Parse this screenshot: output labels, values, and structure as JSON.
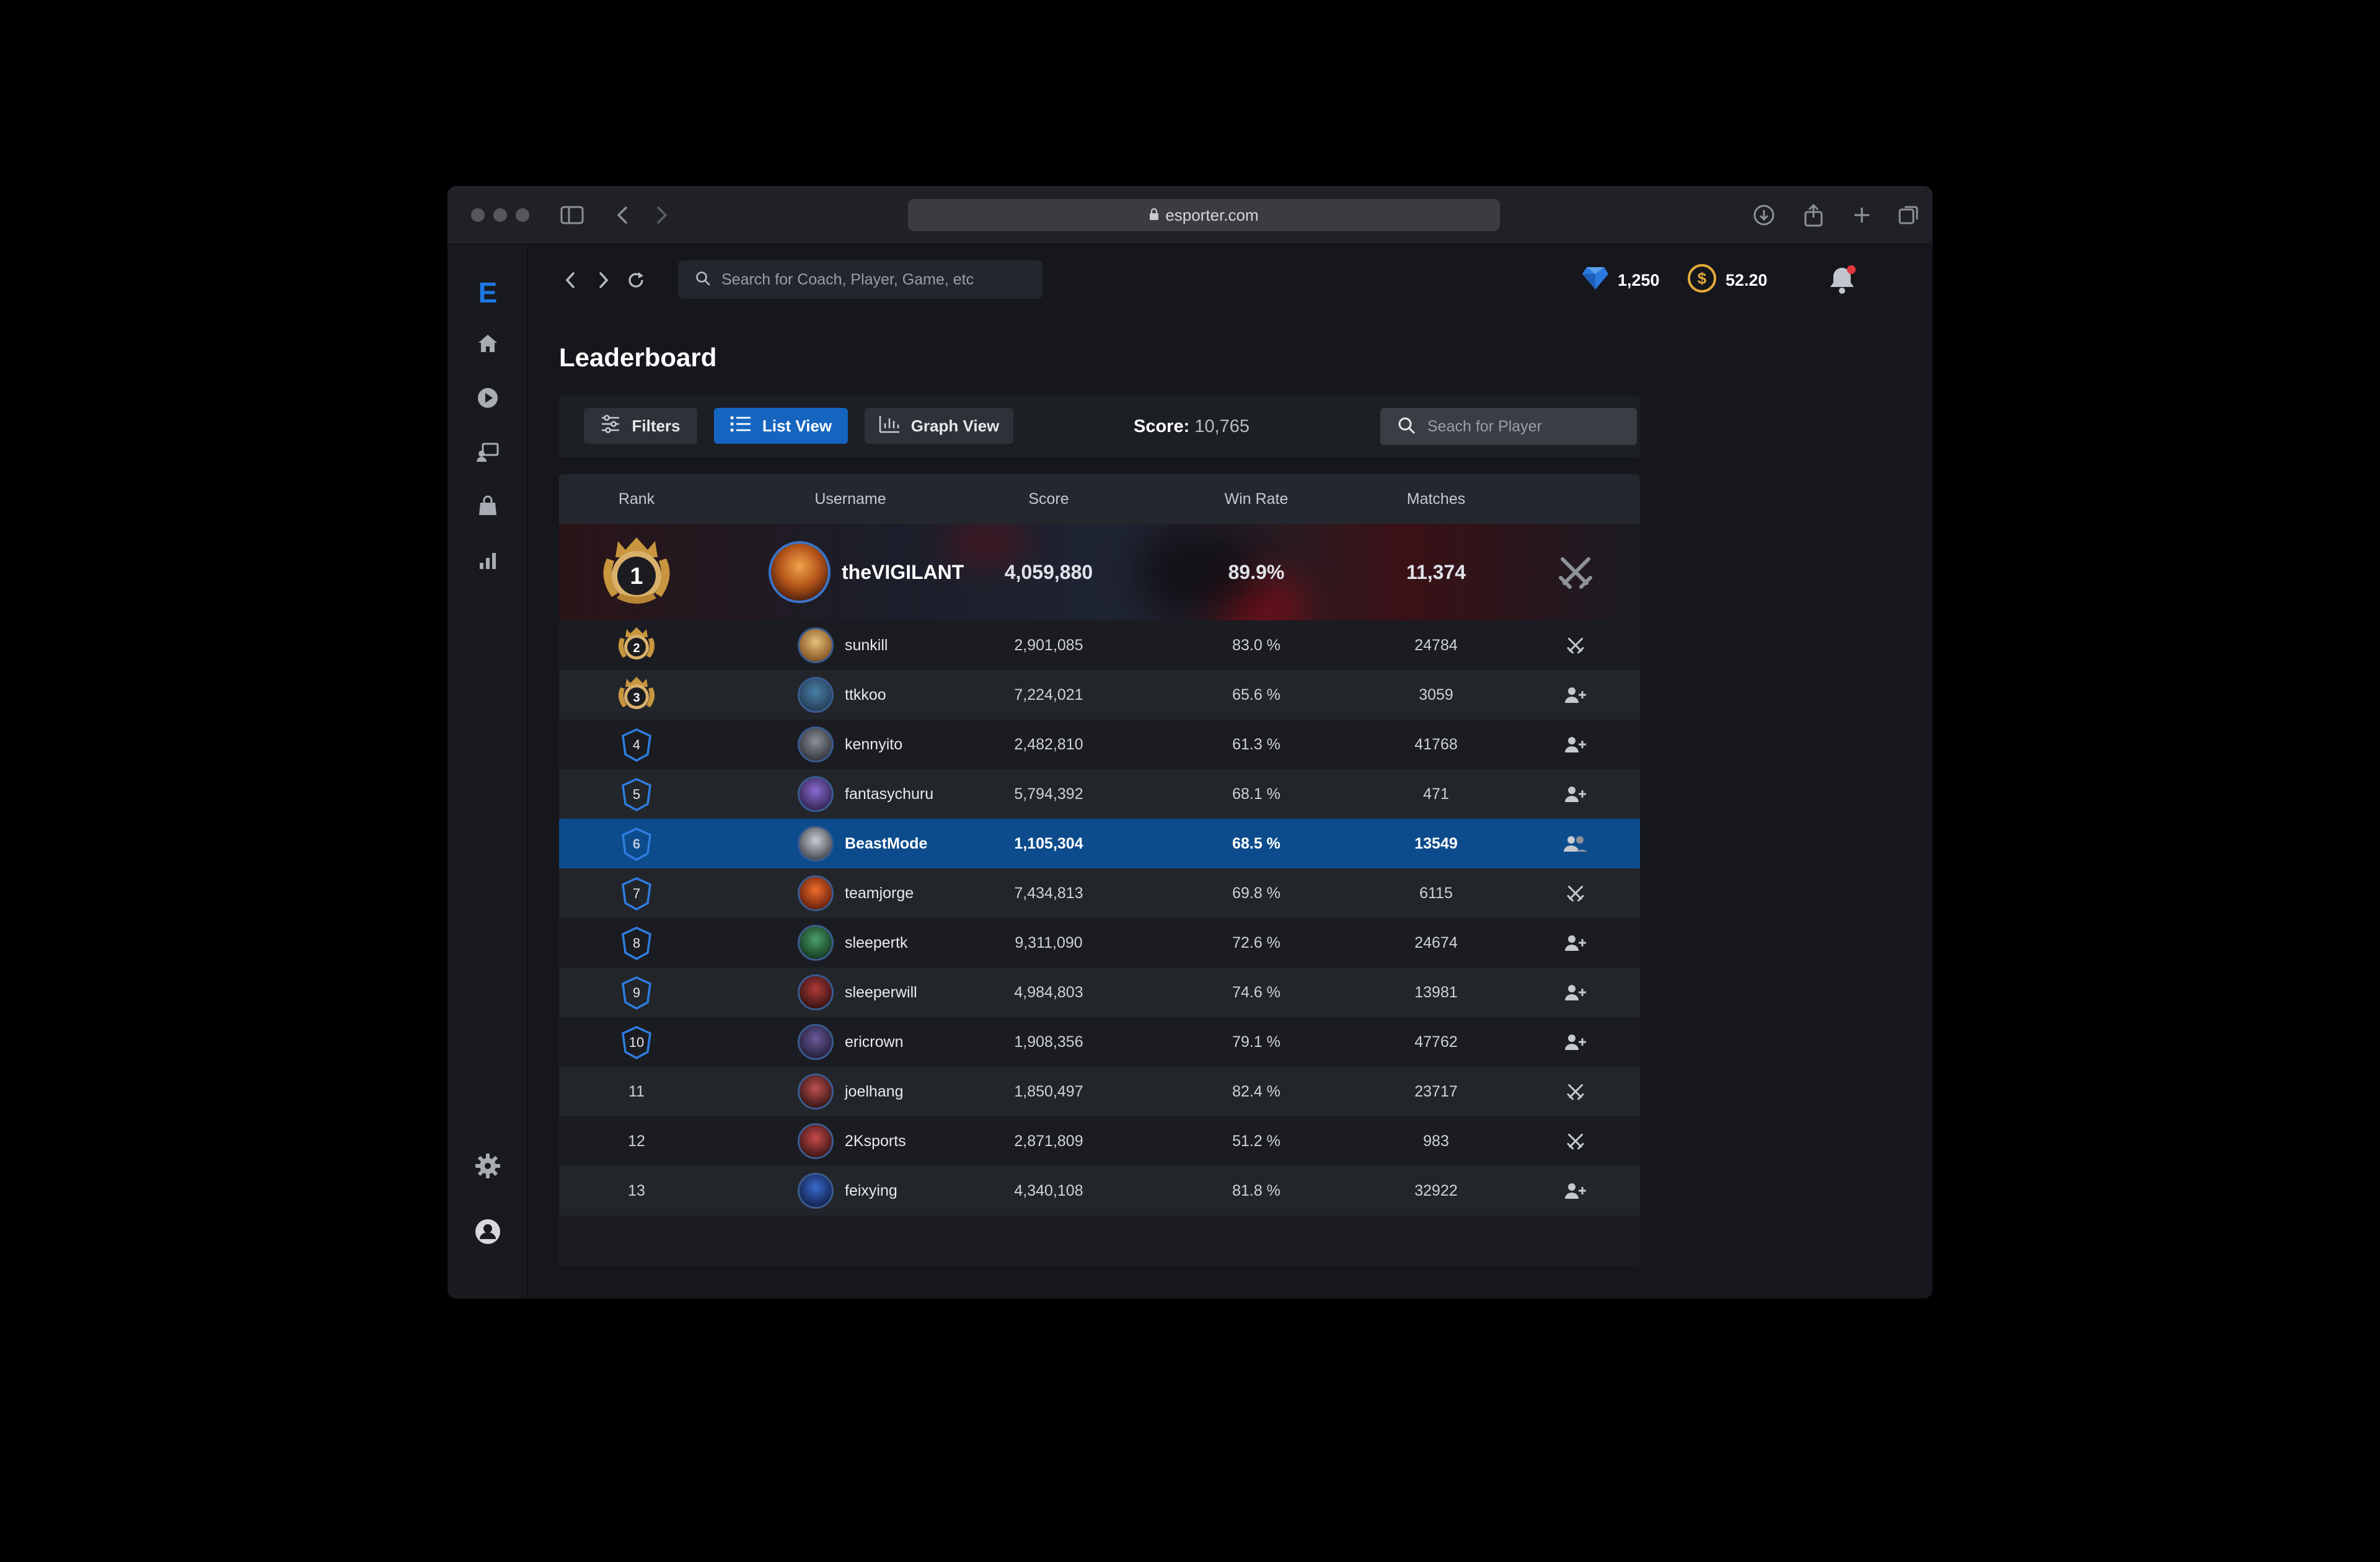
{
  "browser": {
    "url": "esporter.com"
  },
  "app": {
    "logo": "E",
    "global_search_placeholder": "Search for Coach, Player, Game, etc",
    "gems": "1,250",
    "coins": "52.20",
    "page_title": "Leaderboard"
  },
  "toolbar": {
    "filters_label": "Filters",
    "list_view_label": "List View",
    "graph_view_label": "Graph View",
    "score_label": "Score:",
    "score_value": "10,765",
    "player_search_placeholder": "Seach for Player"
  },
  "table": {
    "columns": [
      "Rank",
      "Username",
      "Score",
      "Win Rate",
      "Matches"
    ],
    "top": {
      "rank": "1",
      "username": "theVIGILANT",
      "score": "4,059,880",
      "win_rate": "89.9%",
      "matches": "11,374",
      "action": "swords-icon"
    },
    "rows": [
      {
        "rank": "2",
        "username": "sunkill",
        "score": "2,901,085",
        "win_rate": "83.0 %",
        "matches": "24784",
        "action": "swords-icon",
        "badge": "gold"
      },
      {
        "rank": "3",
        "username": "ttkkoo",
        "score": "7,224,021",
        "win_rate": "65.6 %",
        "matches": "3059",
        "action": "add-user-icon",
        "badge": "gold"
      },
      {
        "rank": "4",
        "username": "kennyito",
        "score": "2,482,810",
        "win_rate": "61.3 %",
        "matches": "41768",
        "action": "add-user-icon",
        "badge": "blue"
      },
      {
        "rank": "5",
        "username": "fantasychuru",
        "score": "5,794,392",
        "win_rate": "68.1 %",
        "matches": "471",
        "action": "add-user-icon",
        "badge": "blue"
      },
      {
        "rank": "6",
        "username": "BeastMode",
        "score": "1,105,304",
        "win_rate": "68.5 %",
        "matches": "13549",
        "action": "friends-icon",
        "badge": "blue"
      },
      {
        "rank": "7",
        "username": "teamjorge",
        "score": "7,434,813",
        "win_rate": "69.8 %",
        "matches": "6115",
        "action": "swords-icon",
        "badge": "blue"
      },
      {
        "rank": "8",
        "username": "sleepertk",
        "score": "9,311,090",
        "win_rate": "72.6 %",
        "matches": "24674",
        "action": "add-user-icon",
        "badge": "blue"
      },
      {
        "rank": "9",
        "username": "sleeperwill",
        "score": "4,984,803",
        "win_rate": "74.6 %",
        "matches": "13981",
        "action": "add-user-icon",
        "badge": "blue"
      },
      {
        "rank": "10",
        "username": "ericrown",
        "score": "1,908,356",
        "win_rate": "79.1 %",
        "matches": "47762",
        "action": "add-user-icon",
        "badge": "blue"
      },
      {
        "rank": "11",
        "username": "joelhang",
        "score": "1,850,497",
        "win_rate": "82.4 %",
        "matches": "23717",
        "action": "swords-icon",
        "badge": "none"
      },
      {
        "rank": "12",
        "username": "2Ksports",
        "score": "2,871,809",
        "win_rate": "51.2 %",
        "matches": "983",
        "action": "swords-icon",
        "badge": "none"
      },
      {
        "rank": "13",
        "username": "feixying",
        "score": "4,340,108",
        "win_rate": "81.8 %",
        "matches": "32922",
        "action": "add-user-icon",
        "badge": "none"
      }
    ]
  },
  "colors": {
    "accent": "#1565c0",
    "gold": "#d9b06a",
    "badge_blue": "#2f7de0",
    "selected_row": "#0d4c8c"
  }
}
